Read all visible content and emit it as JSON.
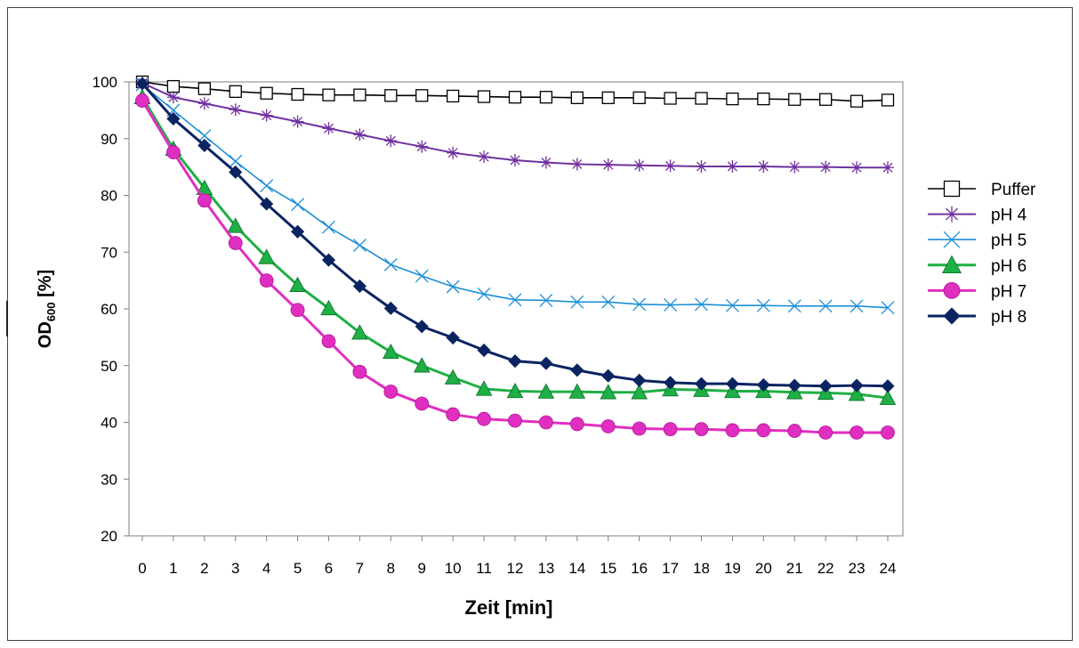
{
  "chart_data": {
    "type": "line",
    "title": "",
    "xlabel": "Zeit [min]",
    "ylabel_main": "OD",
    "ylabel_sub": "600",
    "ylabel_unit": " [%]",
    "xlim": [
      0,
      24
    ],
    "ylim": [
      20,
      100
    ],
    "x_ticks": [
      "0",
      "1",
      "2",
      "3",
      "4",
      "5",
      "6",
      "7",
      "8",
      "9",
      "10",
      "11",
      "12",
      "13",
      "14",
      "15",
      "16",
      "17",
      "18",
      "19",
      "20",
      "21",
      "22",
      "23",
      "24"
    ],
    "y_ticks": [
      "20",
      "30",
      "40",
      "50",
      "60",
      "70",
      "80",
      "90",
      "100"
    ],
    "grid": false,
    "legend_position": "right",
    "x": [
      0,
      1,
      2,
      3,
      4,
      5,
      6,
      7,
      8,
      9,
      10,
      11,
      12,
      13,
      14,
      15,
      16,
      17,
      18,
      19,
      20,
      21,
      22,
      23,
      24
    ],
    "series": [
      {
        "name": "Puffer",
        "color": "#000000",
        "marker": "square-open",
        "values": [
          100,
          99.2,
          98.8,
          98.3,
          98,
          97.8,
          97.7,
          97.7,
          97.6,
          97.6,
          97.5,
          97.4,
          97.3,
          97.3,
          97.2,
          97.2,
          97.2,
          97.1,
          97.1,
          97,
          97,
          96.9,
          96.9,
          96.6,
          96.8
        ]
      },
      {
        "name": "pH 4",
        "color": "#7030A0",
        "marker": "star",
        "values": [
          99.8,
          97.3,
          96.2,
          95.1,
          94.1,
          93,
          91.8,
          90.7,
          89.6,
          88.6,
          87.5,
          86.8,
          86.2,
          85.8,
          85.5,
          85.4,
          85.3,
          85.2,
          85.1,
          85.1,
          85.1,
          85,
          85,
          84.9,
          84.9
        ]
      },
      {
        "name": "pH 5",
        "color": "#1B8ED6",
        "marker": "x",
        "values": [
          99.5,
          95,
          90.5,
          86,
          81.7,
          78.4,
          74.4,
          71.2,
          67.8,
          65.8,
          63.9,
          62.6,
          61.6,
          61.5,
          61.2,
          61.2,
          60.8,
          60.7,
          60.8,
          60.6,
          60.6,
          60.5,
          60.5,
          60.5,
          60.2
        ]
      },
      {
        "name": "pH 6",
        "color": "#1FAF45",
        "marker": "triangle",
        "values": [
          97.3,
          88.2,
          81.3,
          74.6,
          69.1,
          64.2,
          60.1,
          55.8,
          52.4,
          50,
          47.9,
          45.9,
          45.5,
          45.4,
          45.4,
          45.3,
          45.3,
          45.8,
          45.7,
          45.5,
          45.5,
          45.3,
          45.2,
          45,
          44.3
        ]
      },
      {
        "name": "pH 7",
        "color": "#E02FC0",
        "marker": "circle",
        "values": [
          96.7,
          87.6,
          79.1,
          71.6,
          65,
          59.8,
          54.3,
          48.9,
          45.4,
          43.3,
          41.4,
          40.6,
          40.3,
          40,
          39.7,
          39.3,
          38.9,
          38.8,
          38.8,
          38.6,
          38.6,
          38.5,
          38.2,
          38.2,
          38.2
        ]
      },
      {
        "name": "pH 8",
        "color": "#0B2461",
        "marker": "diamond",
        "values": [
          99.7,
          93.5,
          88.8,
          84.1,
          78.5,
          73.6,
          68.6,
          64,
          60.1,
          56.9,
          54.9,
          52.7,
          50.8,
          50.4,
          49.2,
          48.2,
          47.4,
          47,
          46.8,
          46.8,
          46.6,
          46.5,
          46.4,
          46.5,
          46.4
        ]
      }
    ]
  }
}
